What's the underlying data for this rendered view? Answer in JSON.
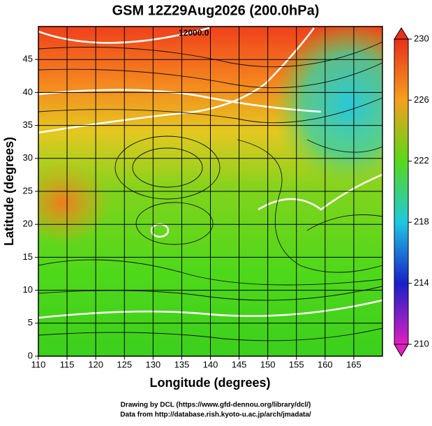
{
  "header": {
    "title": "GSM 12Z29Aug2026 (200.0hPa)"
  },
  "map": {
    "xlabel": "Longitude (degrees)",
    "ylabel": "Latitude  (degrees)",
    "xlim": [
      110,
      170
    ],
    "ylim": [
      0,
      50
    ],
    "xticks": [
      110,
      115,
      120,
      125,
      130,
      135,
      140,
      145,
      150,
      155,
      160,
      165
    ],
    "yticks": [
      0,
      5,
      10,
      15,
      20,
      25,
      30,
      35,
      40,
      45
    ],
    "contour_label": "12000.0"
  },
  "colorbar": {
    "lim": [
      210,
      230
    ],
    "ticks": [
      210,
      214,
      218,
      222,
      226,
      230
    ]
  },
  "footer": {
    "lines": [
      "Drawing by DCL (https://www.gfd-dennou.org/library/dcl/)",
      "Data from http://database.rish.kyoto-u.ac.jp/arch/jmadata/"
    ]
  }
}
